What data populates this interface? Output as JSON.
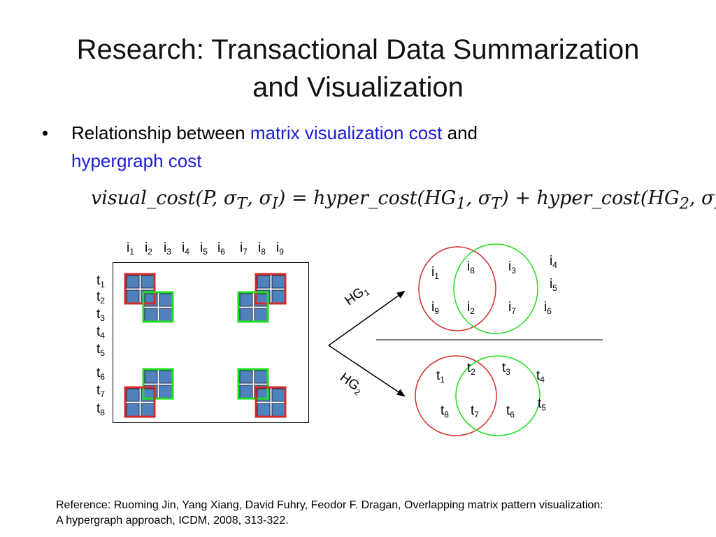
{
  "title": {
    "line1": "Research: Transactional Data Summarization",
    "line2": "and Visualization"
  },
  "bullet": {
    "prefix": "Relationship between ",
    "term1": "matrix visualization cost",
    "middle": " and",
    "term2": "hypergraph cost"
  },
  "formula": {
    "lhs": "visual_cost(P, σ",
    "lhs_sub1": "T",
    "lhs_sep": ", σ",
    "lhs_sub2": "I",
    "lhs_close": ")",
    "equals": "=",
    "rhs1": "hyper_cost(HG",
    "rhs1_sub": "1",
    "rhs1_rest": ", σ",
    "rhs1_sub2": "T",
    "rhs1_close": ")",
    "plus": "+",
    "rhs2": "hyper_cost(HG",
    "rhs2_sub": "2",
    "rhs2_rest": ", σ",
    "rhs2_sub2": "I",
    "rhs2_close": ")"
  },
  "matrix": {
    "column_labels": [
      {
        "base": "i",
        "sub": "1"
      },
      {
        "base": "i",
        "sub": "2"
      },
      {
        "base": "i",
        "sub": "3"
      },
      {
        "base": "i",
        "sub": "4"
      },
      {
        "base": "i",
        "sub": "5"
      },
      {
        "base": "i",
        "sub": "6"
      },
      {
        "base": "i",
        "sub": "7"
      },
      {
        "base": "i",
        "sub": "8"
      },
      {
        "base": "i",
        "sub": "9"
      }
    ],
    "row_labels": [
      {
        "base": "t",
        "sub": "1"
      },
      {
        "base": "t",
        "sub": "2"
      },
      {
        "base": "t",
        "sub": "3"
      },
      {
        "base": "t",
        "sub": "4"
      },
      {
        "base": "t",
        "sub": "5"
      },
      {
        "base": "t",
        "sub": "6"
      },
      {
        "base": "t",
        "sub": "7"
      },
      {
        "base": "t",
        "sub": "8"
      }
    ],
    "cell_color": "#4f81bd",
    "red_color": "#d62b2b",
    "green_color": "#22dd22"
  },
  "edges": {
    "hg1": {
      "base": "HG",
      "sub": "1"
    },
    "hg2": {
      "base": "HG",
      "sub": "2"
    }
  },
  "hypergraph1": {
    "red_nodes": [
      {
        "base": "i",
        "sub": "1"
      },
      {
        "base": "i",
        "sub": "9"
      }
    ],
    "shared_nodes": [
      {
        "base": "i",
        "sub": "8"
      },
      {
        "base": "i",
        "sub": "2"
      }
    ],
    "green_nodes": [
      {
        "base": "i",
        "sub": "3"
      },
      {
        "base": "i",
        "sub": "7"
      }
    ],
    "outside_nodes": [
      {
        "base": "i",
        "sub": "4"
      },
      {
        "base": "i",
        "sub": "5"
      },
      {
        "base": "i",
        "sub": "6"
      }
    ]
  },
  "hypergraph2": {
    "red_nodes": [
      {
        "base": "t",
        "sub": "1"
      },
      {
        "base": "t",
        "sub": "8"
      }
    ],
    "shared_nodes": [
      {
        "base": "t",
        "sub": "2"
      },
      {
        "base": "t",
        "sub": "7"
      }
    ],
    "green_nodes": [
      {
        "base": "t",
        "sub": "3"
      },
      {
        "base": "t",
        "sub": "6"
      }
    ],
    "outside_nodes": [
      {
        "base": "t",
        "sub": "4"
      },
      {
        "base": "t",
        "sub": "5"
      }
    ]
  },
  "reference": {
    "line1": "Reference: Ruoming Jin, Yang Xiang, David Fuhry, Feodor F. Dragan, Overlapping matrix pattern visualization:",
    "line2": "A hypergraph approach, ICDM, 2008, 313-322."
  }
}
